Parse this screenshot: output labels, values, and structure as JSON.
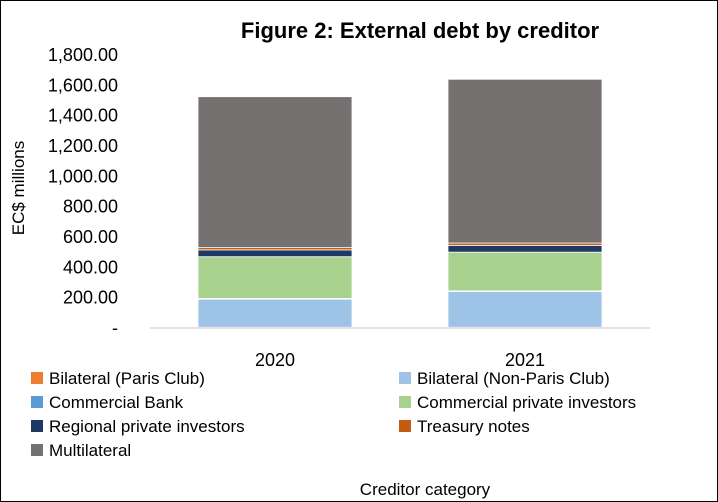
{
  "chart_data": {
    "type": "bar",
    "stacked": true,
    "title": "Figure 2: External debt by creditor",
    "xlabel": "Creditor category",
    "ylabel": "EC$ millions",
    "categories": [
      "2020",
      "2021"
    ],
    "ylim": [
      0,
      1800
    ],
    "yticks": [
      0,
      200,
      400,
      600,
      800,
      1000,
      1200,
      1400,
      1600,
      1800
    ],
    "ytick_labels": [
      "-",
      "200.00",
      "400.00",
      "600.00",
      "800.00",
      "1,000.00",
      "1,200.00",
      "1,400.00",
      "1,600.00",
      "1,800.00"
    ],
    "grid": false,
    "legend_position": "bottom",
    "series": [
      {
        "name": "Bilateral (Paris Club)",
        "color": "#ED7D31",
        "values": [
          5,
          5
        ]
      },
      {
        "name": "Bilateral (Non-Paris Club)",
        "color": "#9DC3E6",
        "values": [
          185,
          235
        ]
      },
      {
        "name": "Commercial Bank",
        "color": "#5B9BD5",
        "values": [
          5,
          5
        ]
      },
      {
        "name": "Commercial private investors",
        "color": "#A9D18E",
        "values": [
          275,
          255
        ]
      },
      {
        "name": "Regional private investors",
        "color": "#203864",
        "values": [
          45,
          45
        ]
      },
      {
        "name": "Treasury notes",
        "color": "#C55A11",
        "values": [
          15,
          15
        ]
      },
      {
        "name": "Multilateral",
        "color": "#767171",
        "values": [
          995,
          1080
        ]
      }
    ]
  }
}
